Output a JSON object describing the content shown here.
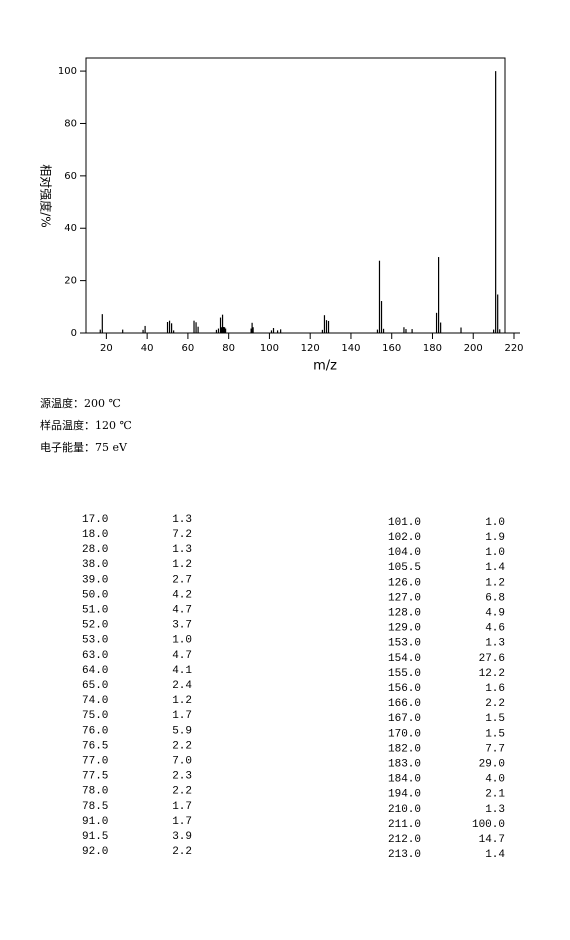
{
  "chart_data": {
    "type": "bar",
    "x_label": "m/z",
    "y_label": "相对强度/%",
    "color": "#000000",
    "x": [
      17,
      18,
      28,
      38,
      39,
      50,
      51,
      52,
      53,
      63,
      64,
      65,
      74,
      75,
      76,
      76.5,
      77,
      77.5,
      78,
      78.5,
      91,
      91.5,
      92,
      101,
      102,
      104,
      105.5,
      126,
      127,
      128,
      129,
      153,
      154,
      155,
      156,
      166,
      167,
      170,
      182,
      183,
      184,
      194,
      210,
      211,
      212,
      213
    ],
    "values": [
      1.3,
      7.2,
      1.3,
      1.2,
      2.7,
      4.2,
      4.7,
      3.7,
      1.0,
      4.7,
      4.1,
      2.4,
      1.2,
      1.7,
      5.9,
      2.2,
      7.0,
      2.3,
      2.2,
      1.7,
      1.7,
      3.9,
      2.2,
      1.0,
      1.9,
      1.0,
      1.4,
      1.2,
      6.8,
      4.9,
      4.6,
      1.3,
      27.6,
      12.2,
      1.6,
      2.2,
      1.5,
      1.5,
      7.7,
      29.0,
      4.0,
      2.1,
      1.3,
      100.0,
      14.7,
      1.4
    ],
    "xlim": [
      10,
      220
    ],
    "xticks": [
      20,
      40,
      60,
      80,
      100,
      120,
      140,
      160,
      180,
      200,
      220
    ],
    "ylim": [
      0,
      105
    ],
    "yticks": [
      0,
      20,
      40,
      60,
      80,
      100
    ]
  },
  "conditions": [
    "源温度：200 ℃",
    "样品温度：120 ℃",
    "电子能量：75 eV"
  ],
  "table": {
    "left": [
      [
        "17.0",
        "1.3"
      ],
      [
        "18.0",
        "7.2"
      ],
      [
        "28.0",
        "1.3"
      ],
      [
        "38.0",
        "1.2"
      ],
      [
        "39.0",
        "2.7"
      ],
      [
        "50.0",
        "4.2"
      ],
      [
        "51.0",
        "4.7"
      ],
      [
        "52.0",
        "3.7"
      ],
      [
        "53.0",
        "1.0"
      ],
      [
        "63.0",
        "4.7"
      ],
      [
        "64.0",
        "4.1"
      ],
      [
        "65.0",
        "2.4"
      ],
      [
        "74.0",
        "1.2"
      ],
      [
        "75.0",
        "1.7"
      ],
      [
        "76.0",
        "5.9"
      ],
      [
        "76.5",
        "2.2"
      ],
      [
        "77.0",
        "7.0"
      ],
      [
        "77.5",
        "2.3"
      ],
      [
        "78.0",
        "2.2"
      ],
      [
        "78.5",
        "1.7"
      ],
      [
        "91.0",
        "1.7"
      ],
      [
        "91.5",
        "3.9"
      ],
      [
        "92.0",
        "2.2"
      ]
    ],
    "right": [
      [
        "101.0",
        "1.0"
      ],
      [
        "102.0",
        "1.9"
      ],
      [
        "104.0",
        "1.0"
      ],
      [
        "105.5",
        "1.4"
      ],
      [
        "126.0",
        "1.2"
      ],
      [
        "127.0",
        "6.8"
      ],
      [
        "128.0",
        "4.9"
      ],
      [
        "129.0",
        "4.6"
      ],
      [
        "153.0",
        "1.3"
      ],
      [
        "154.0",
        "27.6"
      ],
      [
        "155.0",
        "12.2"
      ],
      [
        "156.0",
        "1.6"
      ],
      [
        "166.0",
        "2.2"
      ],
      [
        "167.0",
        "1.5"
      ],
      [
        "170.0",
        "1.5"
      ],
      [
        "182.0",
        "7.7"
      ],
      [
        "183.0",
        "29.0"
      ],
      [
        "184.0",
        "4.0"
      ],
      [
        "194.0",
        "2.1"
      ],
      [
        "210.0",
        "1.3"
      ],
      [
        "211.0",
        "100.0"
      ],
      [
        "212.0",
        "14.7"
      ],
      [
        "213.0",
        "1.4"
      ]
    ]
  }
}
